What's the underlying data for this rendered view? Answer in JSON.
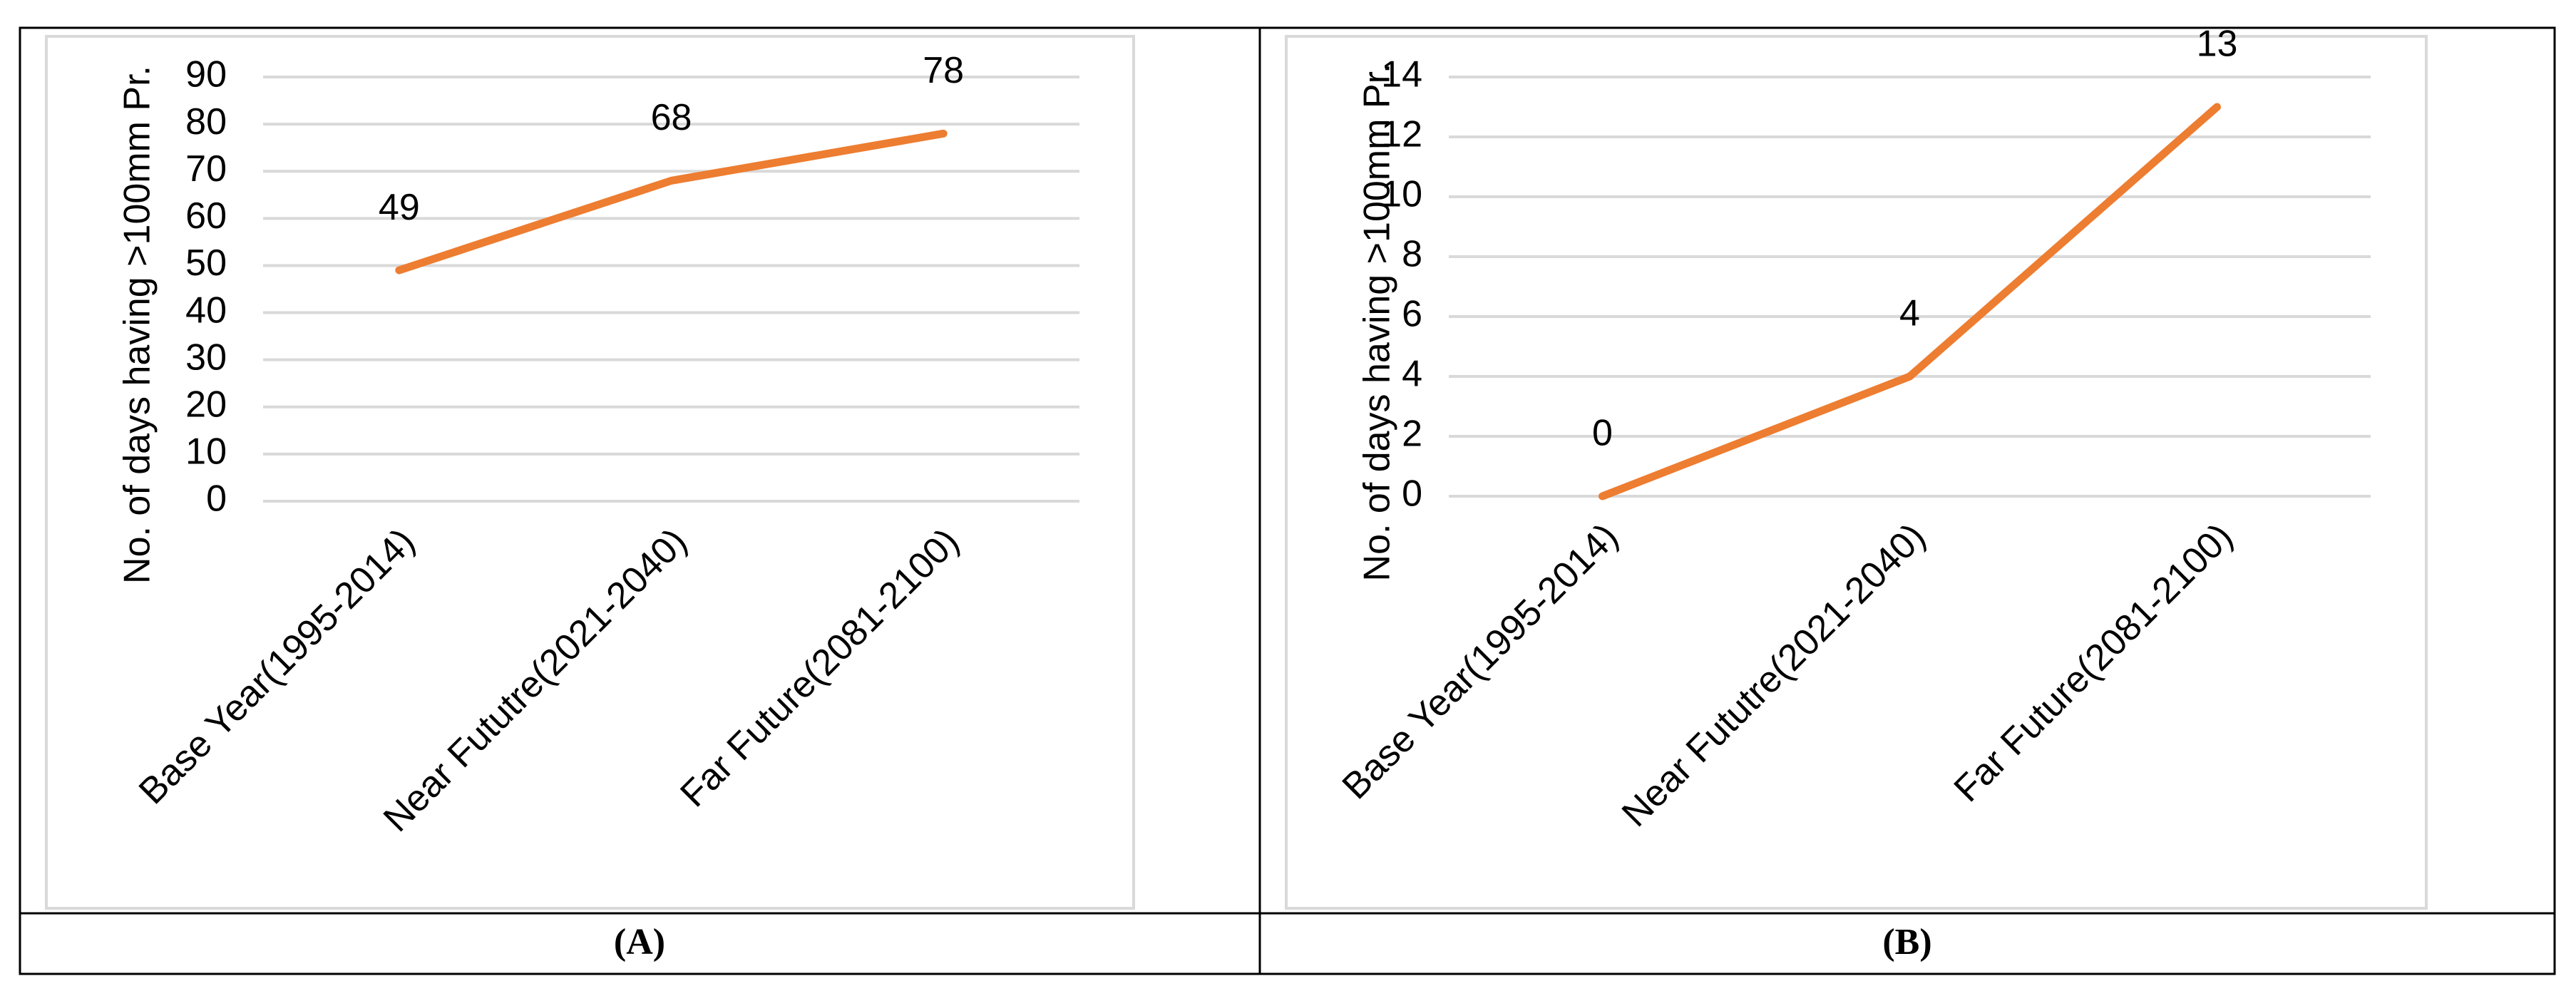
{
  "chart_data": [
    {
      "type": "line",
      "y_label": "No. of days having >100mm Pr.",
      "categories": [
        "Base Year(1995-2014)",
        "Near Fututre(2021-2040)",
        "Far Future(2081-2100)"
      ],
      "values": [
        49,
        68,
        78
      ],
      "color": "#ed7d31",
      "ylim": [
        0,
        90
      ],
      "yticks": [
        0,
        10,
        20,
        30,
        40,
        50,
        60,
        70,
        80,
        90
      ],
      "grid": true
    },
    {
      "type": "line",
      "y_label": "No. of days having >100mm Pr.",
      "categories": [
        "Base Year(1995-2014)",
        "Near Fututre(2021-2040)",
        "Far Future(2081-2100)"
      ],
      "values": [
        0,
        4,
        13
      ],
      "color": "#ed7d31",
      "ylim": [
        0,
        14
      ],
      "yticks": [
        0,
        2,
        4,
        6,
        8,
        10,
        12,
        14
      ],
      "grid": true
    }
  ],
  "captions": [
    "(A)",
    "(B)"
  ]
}
